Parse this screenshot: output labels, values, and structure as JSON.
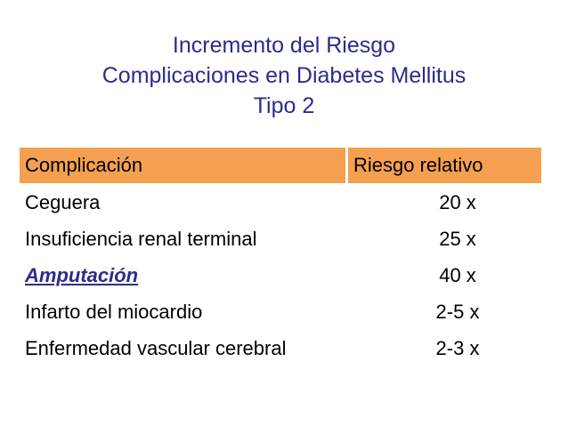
{
  "title": {
    "line1": "Incremento del Riesgo",
    "line2": "Complicaciones en Diabetes Mellitus",
    "line3": "Tipo 2"
  },
  "table": {
    "header": {
      "col1": "Complicación",
      "col2": "Riesgo relativo"
    },
    "rows": [
      {
        "complication": "Ceguera",
        "risk": "20 x"
      },
      {
        "complication": "Insuficiencia renal terminal",
        "risk": "25 x"
      },
      {
        "complication": "Amputación",
        "risk": "40 x"
      },
      {
        "complication": "Infarto del miocardio",
        "risk": "2-5 x"
      },
      {
        "complication": "Enfermedad vascular cerebral",
        "risk": "2-3 x"
      }
    ]
  },
  "colors": {
    "header_bg": "#f5a050",
    "title_text": "#2c2c8c",
    "emphasis_text": "#2c2c8c"
  }
}
